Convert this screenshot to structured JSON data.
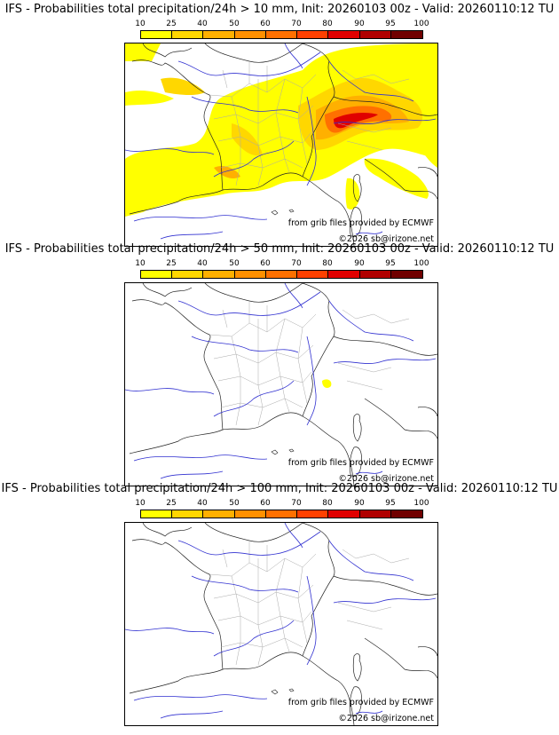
{
  "colorbar": {
    "ticks": [
      "10",
      "25",
      "40",
      "50",
      "60",
      "70",
      "80",
      "90",
      "95",
      "100"
    ],
    "colors": [
      "#ffff00",
      "#ffd700",
      "#ffb000",
      "#ff9000",
      "#ff7000",
      "#ff4000",
      "#e00000",
      "#b00000",
      "#700000"
    ]
  },
  "panels": [
    {
      "title": "IFS - Probabilities total precipitation/24h > 10 mm, Init: 20260103 00z - Valid: 20260110:12 TU"
    },
    {
      "title": "IFS - Probabilities total precipitation/24h > 50 mm, Init: 20260103 00z - Valid: 20260110:12 TU"
    },
    {
      "title": "IFS - Probabilities total precipitation/24h > 100 mm, Init: 20260103 00z - Valid: 20260110:12 TU"
    }
  ],
  "credits": {
    "source": "from grib files provided by ECMWF",
    "copyright": "©2026 sb@irizone.net"
  }
}
